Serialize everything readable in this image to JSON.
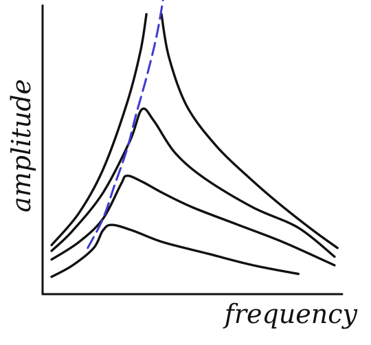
{
  "chart_data": {
    "type": "line",
    "xlabel": "frequency",
    "ylabel": "amplitude",
    "grid": false,
    "legend": "none",
    "xlim": [
      0,
      10
    ],
    "ylim": [
      0,
      10
    ],
    "colors": {
      "curves": "#111111",
      "ridge": "#3b3bd0",
      "axes": "#111111"
    },
    "series": [
      {
        "x": [
          0.3,
          1.2,
          2.0,
          2.8,
          3.25,
          3.45
        ],
        "y": [
          1.7,
          2.8,
          4.3,
          6.6,
          8.4,
          9.7
        ]
      },
      {
        "x": [
          3.95,
          4.2,
          4.8,
          5.8,
          6.9,
          7.9,
          9.0,
          9.8
        ],
        "y": [
          9.7,
          8.2,
          6.5,
          5.1,
          4.0,
          3.1,
          2.2,
          1.6
        ]
      },
      {
        "x": [
          0.3,
          1.0,
          2.0,
          2.9,
          3.3,
          3.7,
          4.4,
          5.4,
          7.0,
          8.5,
          9.7
        ],
        "y": [
          1.5,
          2.2,
          3.5,
          5.3,
          6.4,
          6.0,
          4.9,
          4.0,
          3.0,
          2.3,
          1.3
        ]
      },
      {
        "x": [
          0.3,
          1.2,
          2.0,
          2.6,
          2.8,
          3.3,
          4.0,
          5.0,
          6.5,
          8.0,
          9.7
        ],
        "y": [
          1.2,
          1.8,
          2.6,
          3.8,
          4.1,
          3.9,
          3.5,
          3.0,
          2.4,
          1.8,
          1.0
        ]
      },
      {
        "x": [
          0.3,
          1.0,
          1.7,
          2.0,
          2.3,
          3.0,
          4.0,
          5.5,
          7.0,
          8.5
        ],
        "y": [
          0.6,
          1.0,
          1.6,
          2.2,
          2.4,
          2.2,
          1.8,
          1.4,
          1.0,
          0.7
        ]
      }
    ],
    "ridge_line": {
      "x": [
        1.5,
        2.0,
        2.4,
        2.8,
        3.1,
        3.45,
        3.8,
        4.05
      ],
      "y": [
        1.6,
        2.6,
        3.8,
        5.0,
        6.2,
        7.5,
        9.0,
        10.5
      ]
    }
  }
}
